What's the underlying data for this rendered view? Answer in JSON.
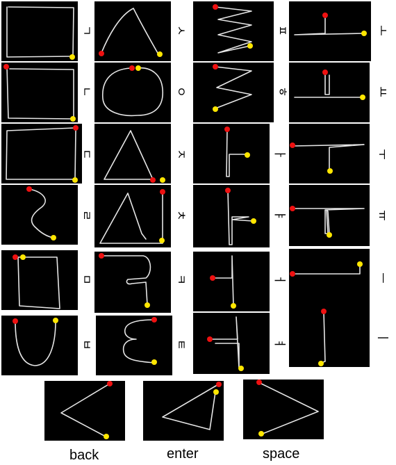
{
  "gestures": [
    {
      "id": "giyeok",
      "label": "ㄱ"
    },
    {
      "id": "nieun",
      "label": "ㄴ"
    },
    {
      "id": "digeut",
      "label": "ㄷ"
    },
    {
      "id": "rieul",
      "label": "ㄹ"
    },
    {
      "id": "mieum",
      "label": "ㅁ"
    },
    {
      "id": "bieup",
      "label": "ㅂ"
    },
    {
      "id": "siot",
      "label": "ㅅ"
    },
    {
      "id": "ieung",
      "label": "ㅇ"
    },
    {
      "id": "jieut",
      "label": "ㅈ"
    },
    {
      "id": "chieut",
      "label": "ㅊ"
    },
    {
      "id": "kieuk",
      "label": "ㅋ"
    },
    {
      "id": "tieut",
      "label": "ㅌ"
    },
    {
      "id": "pieup",
      "label": "ㅍ"
    },
    {
      "id": "hieut",
      "label": "ㅎ"
    },
    {
      "id": "a",
      "label": "ㅏ"
    },
    {
      "id": "ya",
      "label": "ㅑ"
    },
    {
      "id": "eo",
      "label": "ㅓ"
    },
    {
      "id": "yeo",
      "label": "ㅕ"
    },
    {
      "id": "o",
      "label": "ㅗ"
    },
    {
      "id": "yo",
      "label": "ㅛ"
    },
    {
      "id": "u",
      "label": "ㅜ"
    },
    {
      "id": "yu",
      "label": "ㅠ"
    },
    {
      "id": "eu",
      "label": "ㅡ"
    },
    {
      "id": "i",
      "label": "ㅣ"
    }
  ],
  "commands": [
    {
      "id": "back",
      "label": "back"
    },
    {
      "id": "enter",
      "label": "enter"
    },
    {
      "id": "space",
      "label": "space"
    }
  ],
  "colors": {
    "start_point": "#ee1111",
    "end_point": "#ffe600",
    "stroke": "#e6e6e6",
    "tile_bg": "#000000"
  }
}
